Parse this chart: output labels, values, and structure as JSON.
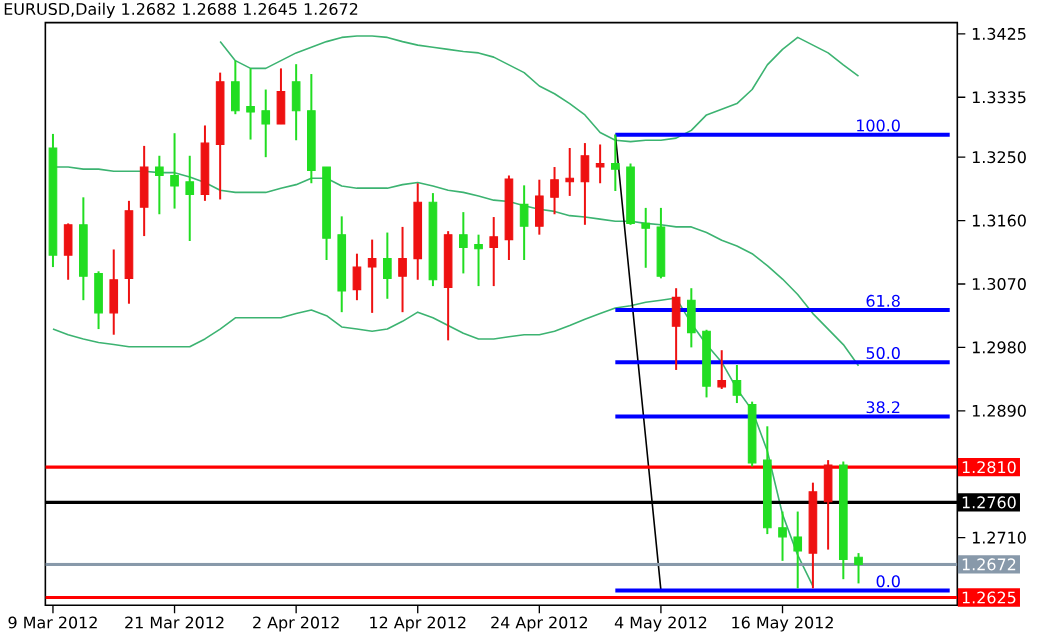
{
  "chart_data": {
    "type": "candlestick",
    "title": "EURUSD,Daily 1.2682 1.2688 1.2645 1.2672",
    "categories": [
      "9 Mar 2012",
      null,
      null,
      null,
      null,
      null,
      null,
      null,
      "21 Mar 2012",
      null,
      null,
      null,
      null,
      null,
      null,
      null,
      "2 Apr 2012",
      null,
      null,
      null,
      null,
      null,
      null,
      null,
      "12 Apr 2012",
      null,
      null,
      null,
      null,
      null,
      null,
      null,
      "24 Apr 2012",
      null,
      null,
      null,
      null,
      null,
      null,
      null,
      "4 May 2012",
      null,
      null,
      null,
      null,
      null,
      null,
      null,
      "16 May 2012",
      null,
      null,
      null,
      null,
      null,
      null,
      null,
      null,
      null,
      null,
      null
    ],
    "ohlc": [
      [
        1.3263,
        1.3283,
        1.3094,
        1.3111
      ],
      [
        1.3111,
        1.3156,
        1.3076,
        1.3154
      ],
      [
        1.3154,
        1.3193,
        1.3047,
        1.3081
      ],
      [
        1.3085,
        1.3088,
        1.3006,
        1.3029
      ],
      [
        1.3029,
        1.3119,
        1.2998,
        1.3076
      ],
      [
        1.3078,
        1.3188,
        1.3042,
        1.3174
      ],
      [
        1.3179,
        1.3266,
        1.3138,
        1.3236
      ],
      [
        1.3236,
        1.3252,
        1.3169,
        1.3224
      ],
      [
        1.3224,
        1.3284,
        1.3177,
        1.3209
      ],
      [
        1.3215,
        1.3252,
        1.3131,
        1.3197
      ],
      [
        1.3197,
        1.3295,
        1.3188,
        1.327
      ],
      [
        1.3268,
        1.337,
        1.319,
        1.3357
      ],
      [
        1.3357,
        1.3387,
        1.3311,
        1.3316
      ],
      [
        1.3322,
        1.3376,
        1.3275,
        1.3314
      ],
      [
        1.3316,
        1.3346,
        1.325,
        1.3297
      ],
      [
        1.3297,
        1.3376,
        1.3297,
        1.3343
      ],
      [
        1.3357,
        1.3382,
        1.3274,
        1.3316
      ],
      [
        1.3316,
        1.3368,
        1.3213,
        1.3231
      ],
      [
        1.3236,
        1.3236,
        1.3104,
        1.3135
      ],
      [
        1.314,
        1.3166,
        1.303,
        1.306
      ],
      [
        1.3062,
        1.3113,
        1.3047,
        1.3094
      ],
      [
        1.3094,
        1.3133,
        1.3029,
        1.3106
      ],
      [
        1.3106,
        1.3143,
        1.3049,
        1.3078
      ],
      [
        1.3081,
        1.3151,
        1.303,
        1.3106
      ],
      [
        1.3106,
        1.3213,
        1.3076,
        1.3186
      ],
      [
        1.3186,
        1.3199,
        1.3067,
        1.3076
      ],
      [
        1.3065,
        1.3145,
        1.299,
        1.314
      ],
      [
        1.314,
        1.3172,
        1.3085,
        1.3122
      ],
      [
        1.3126,
        1.314,
        1.3067,
        1.312
      ],
      [
        1.3122,
        1.3165,
        1.3067,
        1.3137
      ],
      [
        1.3133,
        1.3224,
        1.3104,
        1.3219
      ],
      [
        1.3183,
        1.321,
        1.3104,
        1.3152
      ],
      [
        1.3152,
        1.3218,
        1.314,
        1.3195
      ],
      [
        1.3193,
        1.3236,
        1.3169,
        1.3218
      ],
      [
        1.3215,
        1.3263,
        1.3195,
        1.322
      ],
      [
        1.3215,
        1.327,
        1.3154,
        1.3252
      ],
      [
        1.3236,
        1.3268,
        1.3213,
        1.3241
      ],
      [
        1.3241,
        1.3282,
        1.3202,
        1.3233
      ],
      [
        1.3236,
        1.3241,
        1.3154,
        1.3156
      ],
      [
        1.3156,
        1.3178,
        1.3093,
        1.3149
      ],
      [
        1.3151,
        1.3178,
        1.3078,
        1.3081
      ],
      [
        1.301,
        1.3064,
        1.2948,
        1.3051
      ],
      [
        1.3047,
        1.3064,
        1.298,
        1.3001
      ],
      [
        1.3003,
        1.3005,
        1.2909,
        1.2925
      ],
      [
        1.2924,
        1.2976,
        1.2921,
        1.2933
      ],
      [
        1.2933,
        1.2955,
        1.2901,
        1.2912
      ],
      [
        1.2899,
        1.2903,
        1.2811,
        1.2816
      ],
      [
        1.282,
        1.2868,
        1.2715,
        1.2724
      ],
      [
        1.2724,
        1.2747,
        1.2677,
        1.2711
      ],
      [
        1.2711,
        1.2747,
        1.2638,
        1.2691
      ],
      [
        1.2688,
        1.2788,
        1.2638,
        1.2775
      ],
      [
        1.2761,
        1.282,
        1.2693,
        1.2813
      ],
      [
        1.2813,
        1.2818,
        1.2651,
        1.2679
      ],
      [
        1.2682,
        1.2688,
        1.2645,
        1.2672
      ],
      null,
      null,
      null,
      null,
      null,
      null
    ],
    "colors": [
      "#22dd22",
      "#ee1111",
      "#22dd22",
      "#22dd22",
      "#ee1111",
      "#ee1111",
      "#ee1111",
      "#22dd22",
      "#22dd22",
      "#22dd22",
      "#ee1111",
      "#ee1111",
      "#22dd22",
      "#22dd22",
      "#22dd22",
      "#ee1111",
      "#22dd22",
      "#22dd22",
      "#22dd22",
      "#22dd22",
      "#ee1111",
      "#ee1111",
      "#22dd22",
      "#ee1111",
      "#ee1111",
      "#22dd22",
      "#ee1111",
      "#22dd22",
      "#22dd22",
      "#ee1111",
      "#ee1111",
      "#22dd22",
      "#ee1111",
      "#ee1111",
      "#ee1111",
      "#ee1111",
      "#ee1111",
      "#22dd22",
      "#22dd22",
      "#22dd22",
      "#22dd22",
      "#ee1111",
      "#22dd22",
      "#22dd22",
      "#ee1111",
      "#22dd22",
      "#22dd22",
      "#22dd22",
      "#22dd22",
      "#22dd22",
      "#ee1111",
      "#ee1111",
      "#22dd22",
      "#22dd22",
      null,
      null,
      null,
      null,
      null,
      null
    ],
    "series": [
      {
        "type": "line",
        "color": "#3cb371",
        "values": [
          null,
          null,
          null,
          null,
          null,
          null,
          null,
          null,
          null,
          null,
          null,
          1.3414,
          1.3387,
          1.3376,
          1.3376,
          1.3387,
          1.3398,
          1.3406,
          1.3414,
          1.342,
          1.3422,
          1.3422,
          1.342,
          1.3414,
          1.3409,
          1.3406,
          1.3403,
          1.34,
          1.3398,
          1.3392,
          1.3381,
          1.337,
          1.3351,
          1.334,
          1.3326,
          1.331,
          1.3285,
          1.3274,
          1.3272,
          1.3274,
          1.3274,
          1.3277,
          1.3288,
          1.331,
          1.3318,
          1.3326,
          1.3346,
          1.3381,
          1.3403,
          1.342,
          1.3409,
          1.3398,
          1.3381,
          1.3365,
          null,
          null,
          null,
          null,
          null,
          null
        ]
      },
      {
        "type": "line",
        "color": "#3cb371",
        "values": [
          1.3236,
          1.3236,
          1.3233,
          1.3233,
          1.323,
          1.323,
          1.323,
          1.3228,
          1.3228,
          1.3222,
          1.3214,
          1.3203,
          1.32,
          1.32,
          1.32,
          1.3206,
          1.3211,
          1.322,
          1.322,
          1.3209,
          1.3206,
          1.3206,
          1.3206,
          1.3211,
          1.3214,
          1.3209,
          1.3203,
          1.32,
          1.3195,
          1.3189,
          1.3187,
          1.3181,
          1.3176,
          1.3173,
          1.3167,
          1.3165,
          1.3162,
          1.3159,
          1.3159,
          1.3156,
          1.3154,
          1.3151,
          1.3151,
          1.3143,
          1.3132,
          1.3124,
          1.3113,
          1.3096,
          1.3077,
          1.3055,
          1.3028,
          1.3006,
          1.2984,
          1.2954,
          null,
          null,
          null,
          null,
          null,
          null
        ]
      },
      {
        "type": "line",
        "color": "#3cb371",
        "values": [
          1.3006,
          1.2998,
          1.2992,
          1.2987,
          1.2984,
          1.2981,
          1.2981,
          1.2981,
          1.2981,
          1.2981,
          1.2992,
          1.3006,
          1.3022,
          1.3022,
          1.3022,
          1.3022,
          1.3028,
          1.3033,
          1.3025,
          1.3009,
          1.3006,
          1.3003,
          1.3006,
          1.3017,
          1.303,
          1.3022,
          1.3011,
          1.3,
          1.2992,
          1.2992,
          1.2995,
          1.2998,
          1.2998,
          1.3003,
          1.3011,
          1.302,
          1.3028,
          1.3036,
          1.3039,
          1.3044,
          1.3047,
          1.305,
          1.3014,
          1.2984,
          1.2959,
          1.2921,
          1.2891,
          1.2833,
          1.2743,
          1.2685,
          1.2641,
          null,
          null,
          null,
          null,
          null,
          null,
          null,
          null,
          null
        ]
      },
      {
        "type": "line",
        "color": "#000000",
        "values": [
          null,
          null,
          null,
          null,
          null,
          null,
          null,
          null,
          null,
          null,
          null,
          null,
          null,
          null,
          null,
          null,
          null,
          null,
          null,
          null,
          null,
          null,
          null,
          null,
          null,
          null,
          null,
          null,
          null,
          null,
          null,
          null,
          null,
          null,
          null,
          null,
          null,
          1.3282,
          1.3066,
          1.2851,
          1.2635,
          null,
          null,
          null,
          null,
          null,
          null,
          null,
          null,
          null,
          null,
          null,
          null,
          null,
          null,
          null,
          null,
          null,
          null,
          null
        ]
      },
      {
        "type": "line",
        "name": "100.0",
        "color": "#0000ff",
        "values": [
          null,
          null,
          null,
          null,
          null,
          null,
          null,
          null,
          null,
          null,
          null,
          null,
          null,
          null,
          null,
          null,
          null,
          null,
          null,
          null,
          null,
          null,
          null,
          null,
          null,
          null,
          null,
          null,
          null,
          null,
          null,
          null,
          null,
          null,
          null,
          null,
          null,
          1.3282,
          1.3282,
          1.3282,
          1.3282,
          1.3282,
          1.3282,
          1.3282,
          1.3282,
          1.3282,
          1.3282,
          1.3282,
          1.3282,
          1.3282,
          1.3282,
          1.3282,
          1.3282,
          1.3282,
          1.3282,
          1.3282,
          1.3282,
          1.3282,
          1.3282,
          1.3282
        ]
      },
      {
        "type": "line",
        "name": "61.8",
        "color": "#0000ff",
        "values": [
          null,
          null,
          null,
          null,
          null,
          null,
          null,
          null,
          null,
          null,
          null,
          null,
          null,
          null,
          null,
          null,
          null,
          null,
          null,
          null,
          null,
          null,
          null,
          null,
          null,
          null,
          null,
          null,
          null,
          null,
          null,
          null,
          null,
          null,
          null,
          null,
          null,
          1.3033,
          1.3033,
          1.3033,
          1.3033,
          1.3033,
          1.3033,
          1.3033,
          1.3033,
          1.3033,
          1.3033,
          1.3033,
          1.3033,
          1.3033,
          1.3033,
          1.3033,
          1.3033,
          1.3033,
          1.3033,
          1.3033,
          1.3033,
          1.3033,
          1.3033,
          1.3033
        ]
      },
      {
        "type": "line",
        "name": "50.0",
        "color": "#0000ff",
        "values": [
          null,
          null,
          null,
          null,
          null,
          null,
          null,
          null,
          null,
          null,
          null,
          null,
          null,
          null,
          null,
          null,
          null,
          null,
          null,
          null,
          null,
          null,
          null,
          null,
          null,
          null,
          null,
          null,
          null,
          null,
          null,
          null,
          null,
          null,
          null,
          null,
          null,
          1.2959,
          1.2959,
          1.2959,
          1.2959,
          1.2959,
          1.2959,
          1.2959,
          1.2959,
          1.2959,
          1.2959,
          1.2959,
          1.2959,
          1.2959,
          1.2959,
          1.2959,
          1.2959,
          1.2959,
          1.2959,
          1.2959,
          1.2959,
          1.2959,
          1.2959,
          1.2959
        ]
      },
      {
        "type": "line",
        "name": "38.2",
        "color": "#0000ff",
        "values": [
          null,
          null,
          null,
          null,
          null,
          null,
          null,
          null,
          null,
          null,
          null,
          null,
          null,
          null,
          null,
          null,
          null,
          null,
          null,
          null,
          null,
          null,
          null,
          null,
          null,
          null,
          null,
          null,
          null,
          null,
          null,
          null,
          null,
          null,
          null,
          null,
          null,
          1.2882,
          1.2882,
          1.2882,
          1.2882,
          1.2882,
          1.2882,
          1.2882,
          1.2882,
          1.2882,
          1.2882,
          1.2882,
          1.2882,
          1.2882,
          1.2882,
          1.2882,
          1.2882,
          1.2882,
          1.2882,
          1.2882,
          1.2882,
          1.2882,
          1.2882,
          1.2882
        ]
      },
      {
        "type": "line",
        "name": "0.0",
        "color": "#0000ff",
        "values": [
          null,
          null,
          null,
          null,
          null,
          null,
          null,
          null,
          null,
          null,
          null,
          null,
          null,
          null,
          null,
          null,
          null,
          null,
          null,
          null,
          null,
          null,
          null,
          null,
          null,
          null,
          null,
          null,
          null,
          null,
          null,
          null,
          null,
          null,
          null,
          null,
          null,
          1.2635,
          1.2635,
          1.2635,
          1.2635,
          1.2635,
          1.2635,
          1.2635,
          1.2635,
          1.2635,
          1.2635,
          1.2635,
          1.2635,
          1.2635,
          1.2635,
          1.2635,
          1.2635,
          1.2635,
          1.2635,
          1.2635,
          1.2635,
          1.2635,
          1.2635,
          1.2635
        ]
      }
    ],
    "ref_lines": [
      {
        "axis": "y",
        "value": 1.281,
        "label": "1.2810",
        "color": "#ff0000"
      },
      {
        "axis": "y",
        "value": 1.276,
        "label": "1.2760",
        "color": "#000000"
      },
      {
        "axis": "y",
        "value": 1.2672,
        "label": "1.2672",
        "color": "#8899aa"
      },
      {
        "axis": "y",
        "value": 1.2625,
        "label": "1.2625",
        "color": "#ff0000"
      }
    ],
    "ylim": [
      1.2614,
      1.3441
    ],
    "yticks": [
      1.3425,
      1.3335,
      {
        "value": 1.325,
        "label": "1.3250"
      },
      {
        "value": 1.316,
        "label": "1.3160"
      },
      {
        "value": 1.307,
        "label": "1.3070"
      },
      {
        "value": 1.298,
        "label": "1.2980"
      },
      {
        "value": 1.289,
        "label": "1.2890"
      },
      {
        "value": 1.271,
        "label": "1.2710"
      }
    ]
  }
}
